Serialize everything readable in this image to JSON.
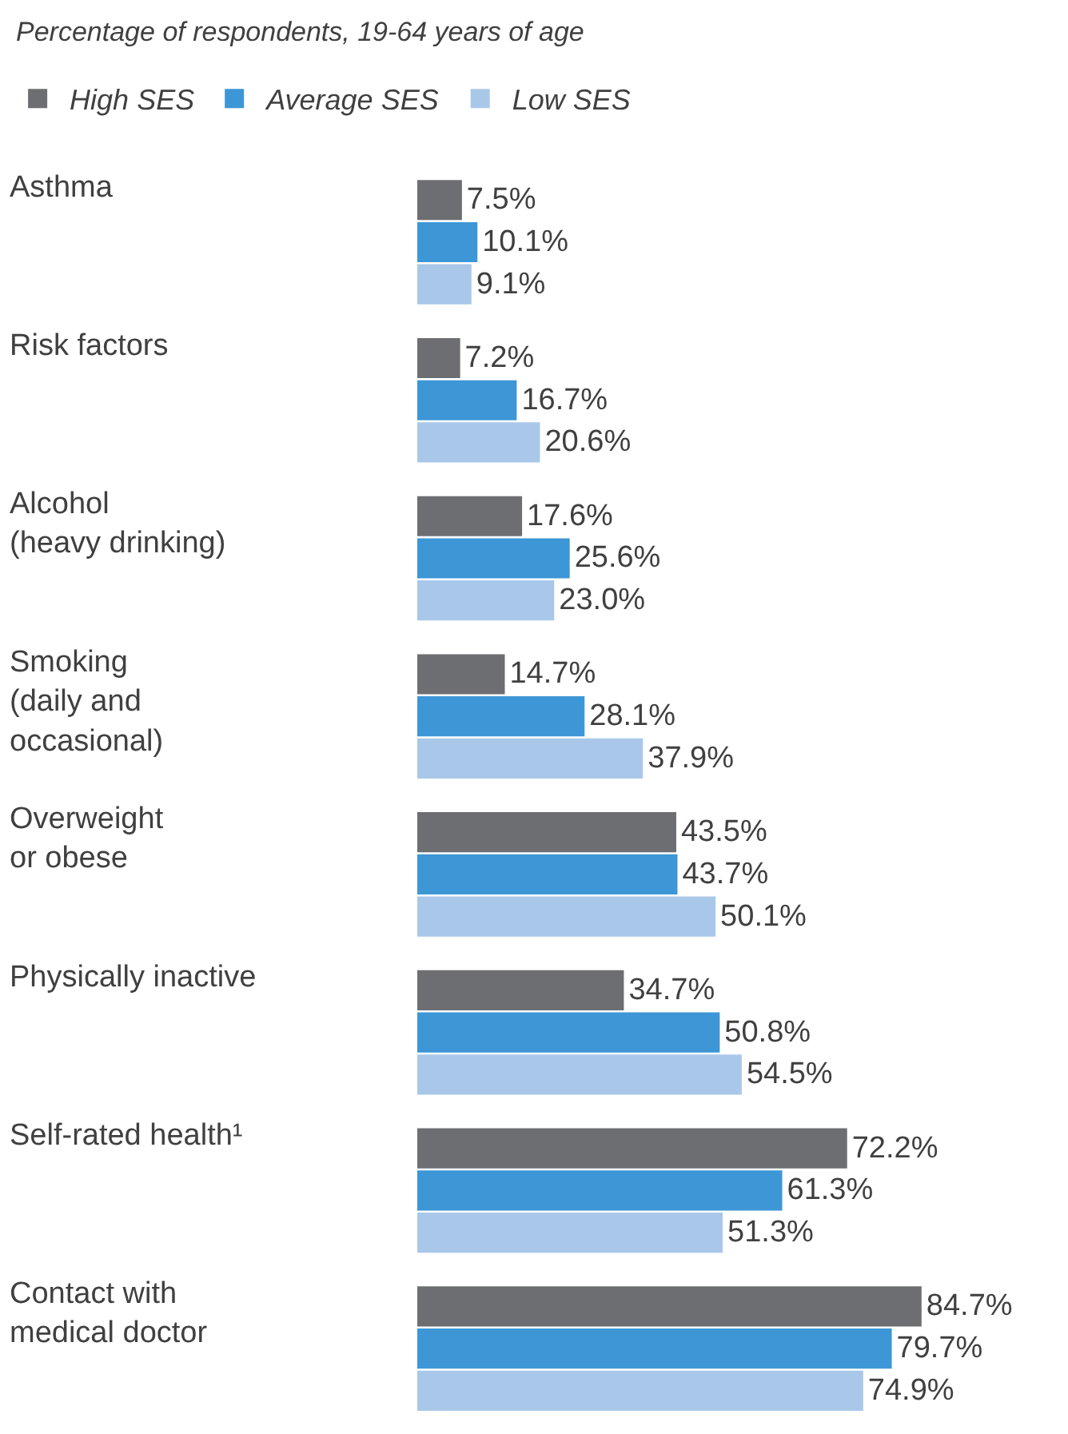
{
  "chart_data": {
    "type": "bar",
    "orientation": "horizontal",
    "title": "Percentage of respondents, 19-64 years of age",
    "categories": [
      "Asthma",
      "Risk factors",
      "Alcohol\n(heavy drinking)",
      "Smoking\n(daily and\noccasional)",
      "Overweight\nor obese",
      "Physically inactive",
      "Self-rated health¹",
      "Contact with\nmedical doctor"
    ],
    "series": [
      {
        "name": "High SES",
        "color": "#6d6e71",
        "values": [
          7.5,
          7.2,
          17.6,
          14.7,
          43.5,
          34.7,
          72.2,
          84.7
        ],
        "value_labels": [
          "7.5%",
          "7.2%",
          "17.6%",
          "14.7%",
          "43.5%",
          "34.7%",
          "72.2%",
          "84.7%"
        ]
      },
      {
        "name": "Average SES",
        "color": "#3d96d6",
        "values": [
          10.1,
          16.7,
          25.6,
          28.1,
          43.7,
          50.8,
          61.3,
          79.7
        ],
        "value_labels": [
          "10.1%",
          "16.7%",
          "25.6%",
          "28.1%",
          "43.7%",
          "50.8%",
          "61.3%",
          "79.7%"
        ]
      },
      {
        "name": "Low SES",
        "color": "#a9c8e9",
        "values": [
          9.1,
          20.6,
          23.0,
          37.9,
          50.1,
          54.5,
          51.3,
          74.9
        ],
        "value_labels": [
          "9.1%",
          "20.6%",
          "23.0%",
          "37.9%",
          "50.1%",
          "54.5%",
          "51.3%",
          "74.9%"
        ]
      }
    ],
    "legend": "top left",
    "grid": false,
    "tick_labels": "y"
  }
}
